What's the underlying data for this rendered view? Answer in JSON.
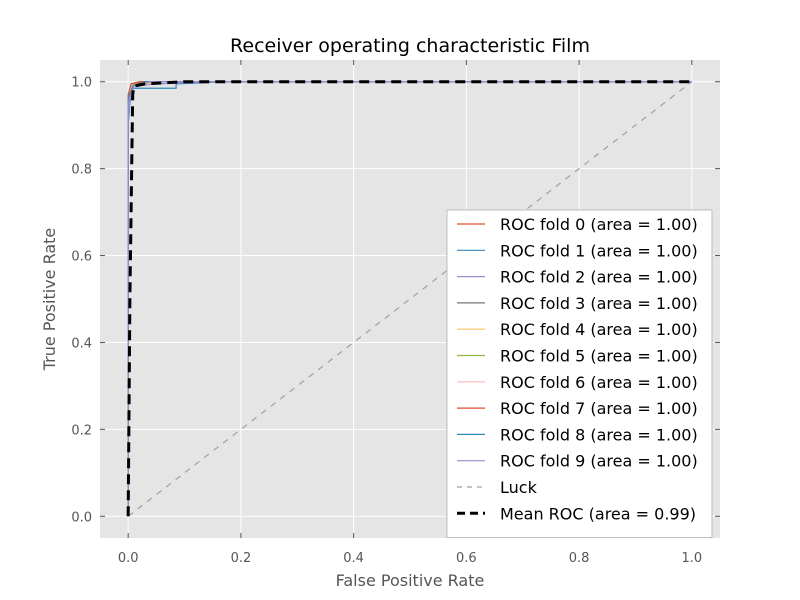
{
  "chart_data": {
    "type": "line",
    "title": "Receiver operating characteristic Film",
    "xlabel": "False Positive Rate",
    "ylabel": "True Positive Rate",
    "xlim": [
      -0.05,
      1.05
    ],
    "ylim": [
      -0.05,
      1.05
    ],
    "xticks": [
      "0.0",
      "0.2",
      "0.4",
      "0.6",
      "0.8",
      "1.0"
    ],
    "yticks": [
      "0.0",
      "0.2",
      "0.4",
      "0.6",
      "0.8",
      "1.0"
    ],
    "grid": true,
    "legend_position": "lower-right",
    "series": [
      {
        "name": "ROC fold 0 (area = 1.00)",
        "color": "#e24a33",
        "style": "solid",
        "points": [
          [
            0,
            0
          ],
          [
            0,
            0.95
          ],
          [
            0.005,
            0.985
          ],
          [
            0.01,
            0.995
          ],
          [
            0.03,
            1.0
          ],
          [
            1.0,
            1.0
          ]
        ]
      },
      {
        "name": "ROC fold 1 (area = 1.00)",
        "color": "#348abd",
        "style": "solid",
        "points": [
          [
            0,
            0
          ],
          [
            0,
            0.9
          ],
          [
            0.005,
            0.985
          ],
          [
            0.085,
            0.985
          ],
          [
            0.085,
            0.995
          ],
          [
            0.14,
            0.998
          ],
          [
            0.16,
            1.0
          ],
          [
            1.0,
            1.0
          ]
        ]
      },
      {
        "name": "ROC fold 2 (area = 1.00)",
        "color": "#988ed5",
        "style": "solid",
        "points": [
          [
            0,
            0
          ],
          [
            0,
            0.93
          ],
          [
            0.01,
            0.99
          ],
          [
            0.05,
            0.995
          ],
          [
            0.15,
            1.0
          ],
          [
            1.0,
            1.0
          ]
        ]
      },
      {
        "name": "ROC fold 3 (area = 1.00)",
        "color": "#777777",
        "style": "solid",
        "points": [
          [
            0,
            0
          ],
          [
            0,
            0.96
          ],
          [
            0.005,
            0.99
          ],
          [
            0.02,
            0.998
          ],
          [
            0.05,
            1.0
          ],
          [
            1.0,
            1.0
          ]
        ]
      },
      {
        "name": "ROC fold 4 (area = 1.00)",
        "color": "#fbc15e",
        "style": "solid",
        "points": [
          [
            0,
            0
          ],
          [
            0,
            0.97
          ],
          [
            0.005,
            0.99
          ],
          [
            0.03,
            0.995
          ],
          [
            0.06,
            1.0
          ],
          [
            1.0,
            1.0
          ]
        ]
      },
      {
        "name": "ROC fold 5 (area = 1.00)",
        "color": "#8eba42",
        "style": "solid",
        "points": [
          [
            0,
            0
          ],
          [
            0,
            0.96
          ],
          [
            0.004,
            0.99
          ],
          [
            0.02,
            1.0
          ],
          [
            1.0,
            1.0
          ]
        ]
      },
      {
        "name": "ROC fold 6 (area = 1.00)",
        "color": "#ffb5b8",
        "style": "solid",
        "points": [
          [
            0,
            0
          ],
          [
            0,
            0.95
          ],
          [
            0.006,
            0.99
          ],
          [
            0.04,
            1.0
          ],
          [
            1.0,
            1.0
          ]
        ]
      },
      {
        "name": "ROC fold 7 (area = 1.00)",
        "color": "#e24a33",
        "style": "solid",
        "points": [
          [
            0,
            0
          ],
          [
            0,
            0.97
          ],
          [
            0.005,
            0.995
          ],
          [
            0.02,
            1.0
          ],
          [
            1.0,
            1.0
          ]
        ]
      },
      {
        "name": "ROC fold 8 (area = 1.00)",
        "color": "#348abd",
        "style": "solid",
        "points": [
          [
            0,
            0
          ],
          [
            0,
            0.96
          ],
          [
            0.008,
            0.99
          ],
          [
            0.03,
            1.0
          ],
          [
            1.0,
            1.0
          ]
        ]
      },
      {
        "name": "ROC fold 9 (area = 1.00)",
        "color": "#988ed5",
        "style": "solid",
        "points": [
          [
            0,
            0
          ],
          [
            0,
            0.95
          ],
          [
            0.01,
            0.99
          ],
          [
            0.04,
            1.0
          ],
          [
            1.0,
            1.0
          ]
        ]
      },
      {
        "name": "Luck",
        "color": "#a0a0a0",
        "style": "dashed",
        "points": [
          [
            0,
            0
          ],
          [
            1,
            1
          ]
        ]
      },
      {
        "name": "Mean ROC (area = 0.99)",
        "color": "#000000",
        "style": "dashed-bold",
        "points": [
          [
            0,
            0
          ],
          [
            0.003,
            0.5
          ],
          [
            0.008,
            0.97
          ],
          [
            0.01,
            0.99
          ],
          [
            0.03,
            0.995
          ],
          [
            0.1,
            1.0
          ],
          [
            1.0,
            1.0
          ]
        ]
      }
    ]
  },
  "colors": {
    "plot_background": "#e5e5e5",
    "grid": "#ffffff",
    "legend_background": "#ffffff",
    "legend_border": "#bcbcbc"
  }
}
